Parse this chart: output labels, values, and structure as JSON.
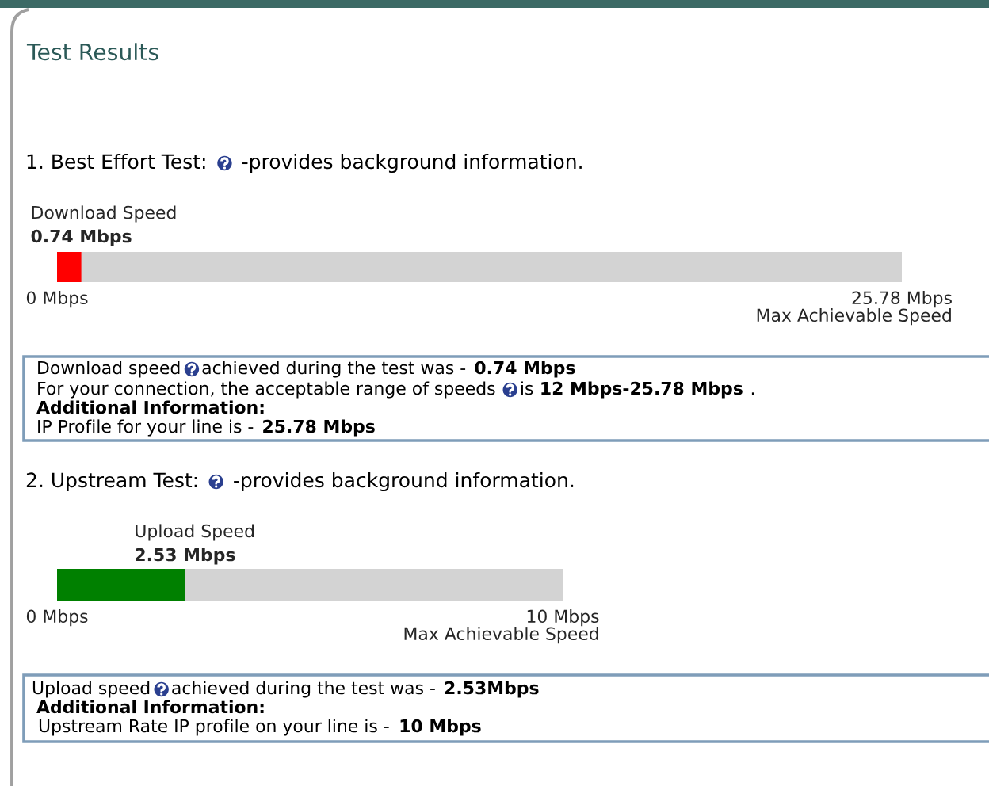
{
  "chart_data": [
    {
      "type": "other",
      "title": "Test Results"
    },
    {
      "type": "bar",
      "orientation": "horizontal",
      "title": "1. Best Effort Test:",
      "subtitle": "-provides background information.",
      "categories": [
        "Download Speed"
      ],
      "values": [
        0.74
      ],
      "value_labels": [
        "0.74 Mbps"
      ],
      "color": "#ff0000",
      "xlim": [
        0,
        25.78
      ],
      "xticks": [
        {
          "value": 0,
          "label": "0 Mbps"
        },
        {
          "value": 25.78,
          "label": "25.78 Mbps"
        }
      ],
      "xlabel": "Max Achievable Speed",
      "annotations": [
        "Download speed",
        "achieved during the test was -",
        "0.74 Mbps",
        "For your connection, the acceptable range of speeds",
        "is",
        "12 Mbps-25.78 Mbps",
        ".",
        "Additional Information:",
        "IP Profile for your line is -",
        "25.78 Mbps"
      ]
    },
    {
      "type": "bar",
      "orientation": "horizontal",
      "title": "2. Upstream Test:",
      "subtitle": "-provides background information.",
      "categories": [
        "Upload Speed"
      ],
      "values": [
        2.53
      ],
      "value_labels": [
        "2.53 Mbps"
      ],
      "color": "#008000",
      "xlim": [
        0,
        10
      ],
      "xticks": [
        {
          "value": 0,
          "label": "0 Mbps"
        },
        {
          "value": 10,
          "label": "10 Mbps"
        }
      ],
      "xlabel": "Max Achievable Speed",
      "annotations": [
        "Upload speed",
        "achieved during the test was -",
        "2.53Mbps",
        "Additional Information:",
        "Upstream Rate IP profile on your line is -",
        "10 Mbps"
      ]
    }
  ]
}
